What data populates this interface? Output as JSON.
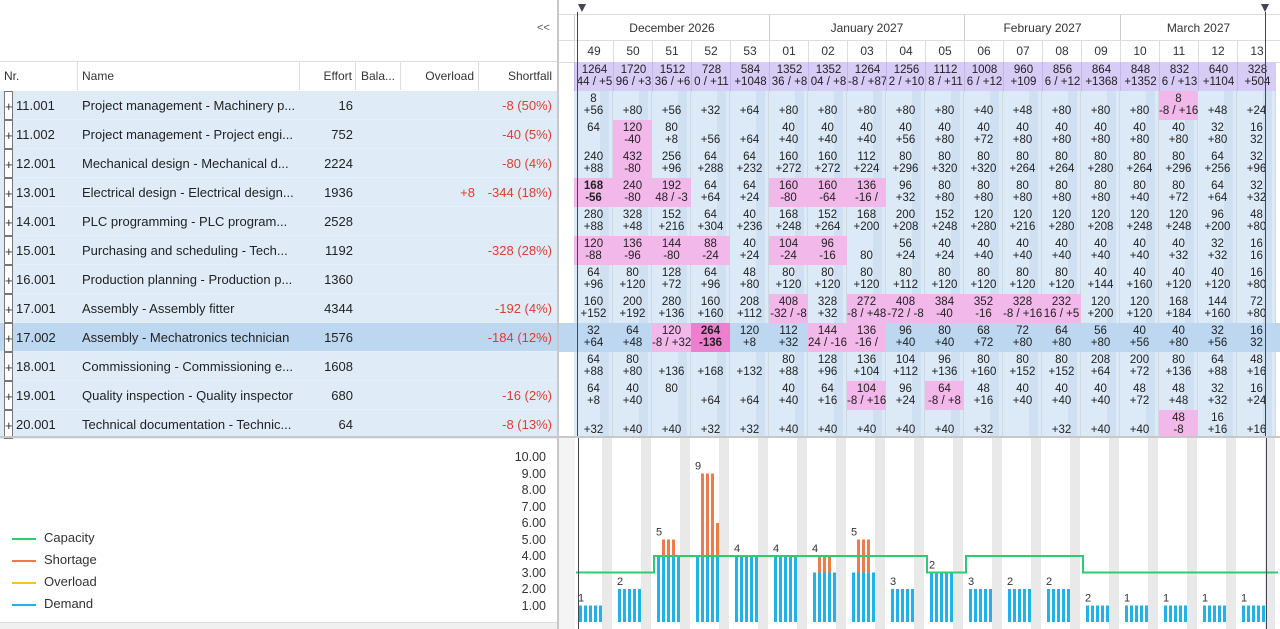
{
  "collapse_label": "<<",
  "columns": {
    "nr": "Nr.",
    "name": "Name",
    "effort": "Effort",
    "balance": "Bala...",
    "overload": "Overload",
    "shortfall": "Shortfall"
  },
  "months": [
    "December 2026",
    "January 2027",
    "February 2027",
    "March 2027"
  ],
  "weeks": [
    "49",
    "50",
    "51",
    "52",
    "53",
    "01",
    "02",
    "03",
    "04",
    "05",
    "06",
    "07",
    "08",
    "09",
    "10",
    "11",
    "12",
    "13"
  ],
  "totals": [
    [
      "1264",
      "44 / +5"
    ],
    [
      "1720",
      "96 / +3"
    ],
    [
      "1512",
      "36 / +6"
    ],
    [
      "728",
      "0 / +11"
    ],
    [
      "584",
      "+1048"
    ],
    [
      "1352",
      "36 / +8"
    ],
    [
      "1352",
      "04 / +8"
    ],
    [
      "1264",
      "-8 / +87"
    ],
    [
      "1256",
      "2 / +10"
    ],
    [
      "1112",
      "8 / +11"
    ],
    [
      "1008",
      "6 / +12"
    ],
    [
      "960",
      "+109"
    ],
    [
      "856",
      "6 / +12"
    ],
    [
      "864",
      "+1368"
    ],
    [
      "848",
      "+1352"
    ],
    [
      "832",
      "6 / +13"
    ],
    [
      "640",
      "+1104"
    ],
    [
      "328",
      "+504"
    ]
  ],
  "rows": [
    {
      "nr": "11.001",
      "name": "Project management - Machinery p...",
      "effort": "16",
      "overload": "",
      "shortfall": "-8 (50%)",
      "cells": [
        [
          "8",
          "+56"
        ],
        [
          "",
          "+80"
        ],
        [
          "",
          "+56"
        ],
        [
          "",
          "+32"
        ],
        [
          "",
          "+64"
        ],
        [
          "",
          "+80"
        ],
        [
          "",
          "+80"
        ],
        [
          "",
          "+80"
        ],
        [
          "",
          "+80"
        ],
        [
          "",
          "+80"
        ],
        [
          "",
          "+40"
        ],
        [
          "",
          "+48"
        ],
        [
          "",
          "+80"
        ],
        [
          "",
          "+80"
        ],
        [
          "",
          "+80"
        ],
        [
          "8",
          "-8 / +16"
        ],
        [
          "",
          "+48"
        ],
        [
          "",
          "+24"
        ]
      ],
      "hl": [
        15
      ]
    },
    {
      "nr": "11.002",
      "name": "Project management - Project engi...",
      "effort": "752",
      "overload": "",
      "shortfall": "-40 (5%)",
      "cells": [
        [
          "64",
          ""
        ],
        [
          "120",
          "-40"
        ],
        [
          "80",
          "+8"
        ],
        [
          "",
          "+56"
        ],
        [
          "",
          "+64"
        ],
        [
          "40",
          "+40"
        ],
        [
          "40",
          "+40"
        ],
        [
          "40",
          "+40"
        ],
        [
          "40",
          "+56"
        ],
        [
          "40",
          "+80"
        ],
        [
          "40",
          "+72"
        ],
        [
          "40",
          "+80"
        ],
        [
          "40",
          "+80"
        ],
        [
          "40",
          "+80"
        ],
        [
          "40",
          "+80"
        ],
        [
          "40",
          "+80"
        ],
        [
          "32",
          "+80"
        ],
        [
          "16",
          "32"
        ]
      ],
      "hl": [
        1
      ]
    },
    {
      "nr": "12.001",
      "name": "Mechanical design - Mechanical d...",
      "effort": "2224",
      "overload": "",
      "shortfall": "-80 (4%)",
      "cells": [
        [
          "240",
          "+88"
        ],
        [
          "432",
          "-80"
        ],
        [
          "256",
          "+96"
        ],
        [
          "64",
          "+288"
        ],
        [
          "64",
          "+232"
        ],
        [
          "160",
          "+272"
        ],
        [
          "160",
          "+272"
        ],
        [
          "112",
          "+224"
        ],
        [
          "80",
          "+296"
        ],
        [
          "80",
          "+320"
        ],
        [
          "80",
          "+320"
        ],
        [
          "80",
          "+264"
        ],
        [
          "80",
          "+264"
        ],
        [
          "80",
          "+280"
        ],
        [
          "80",
          "+264"
        ],
        [
          "80",
          "+296"
        ],
        [
          "64",
          "+256"
        ],
        [
          "32",
          "+96"
        ]
      ],
      "hl": [
        1
      ]
    },
    {
      "nr": "13.001",
      "name": "Electrical design - Electrical design...",
      "effort": "1936",
      "overload": "+8",
      "shortfall": "-344 (18%)",
      "cells": [
        [
          "168",
          "-56"
        ],
        [
          "240",
          "-80"
        ],
        [
          "192",
          "48 / -3"
        ],
        [
          "64",
          "+64"
        ],
        [
          "64",
          "+24"
        ],
        [
          "160",
          "-80"
        ],
        [
          "160",
          "-64"
        ],
        [
          "136",
          "-16 /"
        ],
        [
          "96",
          "+32"
        ],
        [
          "80",
          "+80"
        ],
        [
          "80",
          "+80"
        ],
        [
          "80",
          "+80"
        ],
        [
          "80",
          "+80"
        ],
        [
          "80",
          "+80"
        ],
        [
          "80",
          "+40"
        ],
        [
          "80",
          "+72"
        ],
        [
          "64",
          "+64"
        ],
        [
          "32",
          "+32"
        ]
      ],
      "hl": [
        0,
        1,
        2,
        5,
        6,
        7
      ]
    },
    {
      "nr": "14.001",
      "name": "PLC programming - PLC program...",
      "effort": "2528",
      "overload": "",
      "shortfall": "",
      "cells": [
        [
          "280",
          "+88"
        ],
        [
          "328",
          "+48"
        ],
        [
          "152",
          "+216"
        ],
        [
          "64",
          "+304"
        ],
        [
          "40",
          "+236"
        ],
        [
          "168",
          "+248"
        ],
        [
          "152",
          "+264"
        ],
        [
          "168",
          "+200"
        ],
        [
          "200",
          "+208"
        ],
        [
          "152",
          "+248"
        ],
        [
          "120",
          "+280"
        ],
        [
          "120",
          "+216"
        ],
        [
          "120",
          "+280"
        ],
        [
          "120",
          "+208"
        ],
        [
          "120",
          "+248"
        ],
        [
          "120",
          "+248"
        ],
        [
          "96",
          "+200"
        ],
        [
          "48",
          "+80"
        ]
      ],
      "hl": []
    },
    {
      "nr": "15.001",
      "name": "Purchasing and scheduling - Tech...",
      "effort": "1192",
      "overload": "",
      "shortfall": "-328 (28%)",
      "cells": [
        [
          "120",
          "-88"
        ],
        [
          "136",
          "-96"
        ],
        [
          "144",
          "-80"
        ],
        [
          "88",
          "-24"
        ],
        [
          "40",
          "+24"
        ],
        [
          "104",
          "-24"
        ],
        [
          "96",
          "-16"
        ],
        [
          "",
          "80"
        ],
        [
          "56",
          "+24"
        ],
        [
          "40",
          "+24"
        ],
        [
          "40",
          "+40"
        ],
        [
          "40",
          "+40"
        ],
        [
          "40",
          "+40"
        ],
        [
          "40",
          "+40"
        ],
        [
          "40",
          "+40"
        ],
        [
          "40",
          "+32"
        ],
        [
          "32",
          "+32"
        ],
        [
          "16",
          "16"
        ]
      ],
      "hl": [
        0,
        1,
        2,
        3,
        5,
        6
      ]
    },
    {
      "nr": "16.001",
      "name": "Production planning - Production p...",
      "effort": "1360",
      "overload": "",
      "shortfall": "",
      "cells": [
        [
          "64",
          "+96"
        ],
        [
          "80",
          "+120"
        ],
        [
          "128",
          "+72"
        ],
        [
          "64",
          "+96"
        ],
        [
          "48",
          "+80"
        ],
        [
          "80",
          "+120"
        ],
        [
          "80",
          "+120"
        ],
        [
          "80",
          "+120"
        ],
        [
          "80",
          "+112"
        ],
        [
          "80",
          "+120"
        ],
        [
          "80",
          "+120"
        ],
        [
          "80",
          "+120"
        ],
        [
          "80",
          "+120"
        ],
        [
          "40",
          "+144"
        ],
        [
          "40",
          "+160"
        ],
        [
          "40",
          "+120"
        ],
        [
          "40",
          "+120"
        ],
        [
          "16",
          "+80"
        ]
      ],
      "hl": []
    },
    {
      "nr": "17.001",
      "name": "Assembly - Assembly fitter",
      "effort": "4344",
      "overload": "",
      "shortfall": "-192 (4%)",
      "cells": [
        [
          "160",
          "+152"
        ],
        [
          "200",
          "+192"
        ],
        [
          "280",
          "+136"
        ],
        [
          "160",
          "+160"
        ],
        [
          "208",
          "+112"
        ],
        [
          "408",
          "-32 / -8"
        ],
        [
          "328",
          "+32"
        ],
        [
          "272",
          "-8 / +48"
        ],
        [
          "408",
          "-72 / -8"
        ],
        [
          "384",
          "-40"
        ],
        [
          "352",
          "-16"
        ],
        [
          "328",
          "-8 / +16"
        ],
        [
          "232",
          "16 / +5"
        ],
        [
          "120",
          "+200"
        ],
        [
          "120",
          "+120"
        ],
        [
          "168",
          "+184"
        ],
        [
          "144",
          "+160"
        ],
        [
          "72",
          "+80"
        ]
      ],
      "hl": [
        5,
        7,
        8,
        9,
        10,
        11,
        12
      ]
    },
    {
      "nr": "17.002",
      "name": "Assembly - Mechatronics technician",
      "effort": "1576",
      "overload": "",
      "shortfall": "-184 (12%)",
      "cells": [
        [
          "32",
          "+64"
        ],
        [
          "64",
          "+48"
        ],
        [
          "120",
          "-8 / +32"
        ],
        [
          "264",
          "-136"
        ],
        [
          "120",
          "+8"
        ],
        [
          "112",
          "+32"
        ],
        [
          "144",
          "24 / -16"
        ],
        [
          "136",
          "-16 /"
        ],
        [
          "96",
          "+40"
        ],
        [
          "80",
          "+40"
        ],
        [
          "68",
          "+72"
        ],
        [
          "72",
          "+80"
        ],
        [
          "64",
          "+80"
        ],
        [
          "56",
          "+80"
        ],
        [
          "40",
          "+56"
        ],
        [
          "40",
          "+80"
        ],
        [
          "32",
          "+56"
        ],
        [
          "16",
          "32"
        ]
      ],
      "hl": [
        2,
        3,
        6,
        7
      ]
    },
    {
      "nr": "18.001",
      "name": "Commissioning - Commissioning e...",
      "effort": "1608",
      "overload": "",
      "shortfall": "",
      "cells": [
        [
          "64",
          "+88"
        ],
        [
          "80",
          "+80"
        ],
        [
          "",
          "+136"
        ],
        [
          "",
          "+168"
        ],
        [
          "",
          "+132"
        ],
        [
          "80",
          "+88"
        ],
        [
          "128",
          "+96"
        ],
        [
          "136",
          "+104"
        ],
        [
          "104",
          "+112"
        ],
        [
          "96",
          "+136"
        ],
        [
          "80",
          "+160"
        ],
        [
          "80",
          "+152"
        ],
        [
          "80",
          "+152"
        ],
        [
          "208",
          "+64"
        ],
        [
          "200",
          "+72"
        ],
        [
          "80",
          "+136"
        ],
        [
          "64",
          "+88"
        ],
        [
          "48",
          "+16"
        ]
      ],
      "hl": []
    },
    {
      "nr": "19.001",
      "name": "Quality inspection - Quality inspector",
      "effort": "680",
      "overload": "",
      "shortfall": "-16 (2%)",
      "cells": [
        [
          "64",
          "+8"
        ],
        [
          "40",
          "+40"
        ],
        [
          "80",
          ""
        ],
        [
          "",
          "+64"
        ],
        [
          "",
          "+64"
        ],
        [
          "40",
          "+40"
        ],
        [
          "64",
          "+16"
        ],
        [
          "104",
          "-8 / +16"
        ],
        [
          "96",
          "+24"
        ],
        [
          "64",
          "-8 / +8"
        ],
        [
          "48",
          "+16"
        ],
        [
          "40",
          "+40"
        ],
        [
          "40",
          "+40"
        ],
        [
          "40",
          "+40"
        ],
        [
          "48",
          "+72"
        ],
        [
          "48",
          "+48"
        ],
        [
          "32",
          "+32"
        ],
        [
          "16",
          "+24"
        ]
      ],
      "hl": [
        7,
        9
      ]
    },
    {
      "nr": "20.001",
      "name": "Technical documentation - Technic...",
      "effort": "64",
      "overload": "",
      "shortfall": "-8 (13%)",
      "cells": [
        [
          "",
          "+32"
        ],
        [
          "",
          "+40"
        ],
        [
          "",
          "+40"
        ],
        [
          "",
          "+32"
        ],
        [
          "",
          "+32"
        ],
        [
          "",
          "+40"
        ],
        [
          "",
          "+40"
        ],
        [
          "",
          "+40"
        ],
        [
          "",
          "+40"
        ],
        [
          "",
          "+40"
        ],
        [
          "",
          "+32"
        ],
        [
          "",
          ""
        ],
        [
          "",
          "+32"
        ],
        [
          "",
          "+40"
        ],
        [
          "",
          "+40"
        ],
        [
          "48",
          "-8"
        ],
        [
          "16",
          "+16"
        ],
        [
          "",
          "+16"
        ]
      ],
      "hl": [
        15
      ]
    }
  ],
  "legend": [
    {
      "label": "Capacity",
      "color": "#2ecc71"
    },
    {
      "label": "Shortage",
      "color": "#f07b4a"
    },
    {
      "label": "Overload",
      "color": "#f5c518"
    },
    {
      "label": "Demand",
      "color": "#1fb3e8"
    }
  ],
  "chart_data": {
    "type": "bar",
    "title": "",
    "xlabel": "",
    "ylabel": "",
    "y_ticks": [
      "10.00",
      "9.00",
      "8.00",
      "7.00",
      "6.00",
      "5.00",
      "4.00",
      "3.00",
      "2.00",
      "1.00"
    ],
    "ylim": [
      0,
      10
    ],
    "week_labels": [
      "1",
      "2",
      "",
      "5",
      "9",
      "",
      "4",
      "",
      "4",
      "4",
      "5",
      "3",
      "",
      "2",
      "3",
      "",
      "2",
      "2",
      "2",
      "",
      "1",
      "",
      "1",
      "",
      "1",
      "",
      "1"
    ],
    "series": [
      {
        "name": "Demand",
        "values": [
          1,
          2,
          4,
          4,
          4,
          4,
          3,
          3,
          2,
          3,
          2,
          2,
          2,
          1,
          1,
          1,
          1,
          1
        ]
      },
      {
        "name": "Capacity",
        "values": [
          3,
          3,
          4,
          4,
          4,
          4,
          4,
          4,
          4,
          3,
          4,
          4,
          4,
          3,
          3,
          3,
          3,
          3
        ]
      },
      {
        "name": "Shortage",
        "values": [
          0,
          0,
          5,
          9,
          0,
          0,
          4,
          5,
          0,
          0,
          0,
          0,
          0,
          0,
          0,
          0,
          0,
          0
        ]
      }
    ],
    "labels": [
      "1",
      "2",
      "5",
      "9",
      "4",
      "4",
      "4",
      "5",
      "3",
      "2",
      "3",
      "2",
      "2",
      "2",
      "1",
      "1",
      "1",
      "1"
    ]
  }
}
